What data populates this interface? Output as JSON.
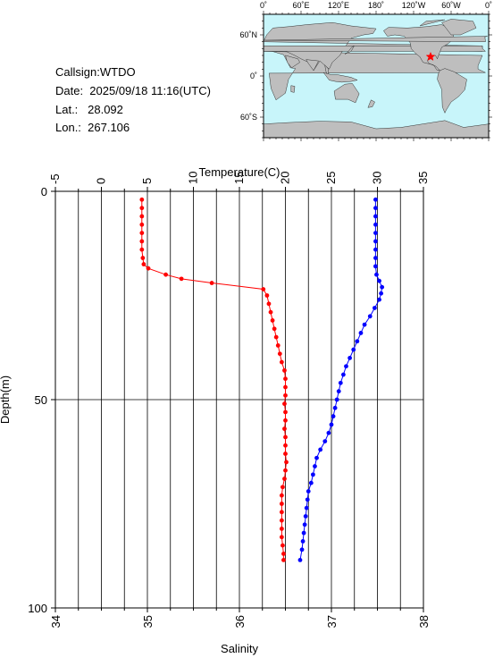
{
  "info": {
    "callsign": "Callsign:WTDO",
    "date": "Date:  2025/09/18 11:16(UTC)",
    "lat": "Lat.:   28.092",
    "lon": "Lon.:  267.106"
  },
  "map": {
    "lon_labels": [
      "0˚",
      "60˚E",
      "120˚E",
      "180˚",
      "120˚W",
      "60˚W",
      "0˚"
    ],
    "lat_labels": [
      "60˚N",
      "0˚",
      "60˚S"
    ],
    "ocean_color": "#c8f5fa",
    "land_color": "#bebebe",
    "marker_color": "#ff0000",
    "marker": {
      "lat": 28.092,
      "lon": 267.106
    }
  },
  "chart_data": {
    "type": "line",
    "temperature_axis": {
      "label": "Temperature(C)",
      "range": [
        -5,
        35
      ],
      "ticks": [
        "-5",
        "0",
        "5",
        "10",
        "15",
        "20",
        "25",
        "30",
        "35"
      ]
    },
    "salinity_axis": {
      "label": "Salinity",
      "range": [
        34,
        38
      ],
      "ticks": [
        "34",
        "35",
        "36",
        "37",
        "38"
      ]
    },
    "depth_axis": {
      "label": "Depth(m)",
      "range": [
        0,
        100
      ],
      "inverted": true,
      "ticks": [
        "0",
        "50",
        "100"
      ]
    },
    "grid": true,
    "series": [
      {
        "color": "#ff0000",
        "axis": "salinity",
        "points": [
          {
            "depth": 2,
            "value": 34.94
          },
          {
            "depth": 4,
            "value": 34.94
          },
          {
            "depth": 6,
            "value": 34.94
          },
          {
            "depth": 8,
            "value": 34.94
          },
          {
            "depth": 10,
            "value": 34.94
          },
          {
            "depth": 12,
            "value": 34.94
          },
          {
            "depth": 14,
            "value": 34.94
          },
          {
            "depth": 16,
            "value": 34.95
          },
          {
            "depth": 17.5,
            "value": 34.96
          },
          {
            "depth": 18.5,
            "value": 35.01
          },
          {
            "depth": 20,
            "value": 35.2
          },
          {
            "depth": 21,
            "value": 35.37
          },
          {
            "depth": 22,
            "value": 35.7
          },
          {
            "depth": 23.5,
            "value": 36.26
          },
          {
            "depth": 25,
            "value": 36.3
          },
          {
            "depth": 27,
            "value": 36.32
          },
          {
            "depth": 29,
            "value": 36.34
          },
          {
            "depth": 31,
            "value": 36.36
          },
          {
            "depth": 33,
            "value": 36.38
          },
          {
            "depth": 35,
            "value": 36.4
          },
          {
            "depth": 37,
            "value": 36.42
          },
          {
            "depth": 39,
            "value": 36.44
          },
          {
            "depth": 41,
            "value": 36.46
          },
          {
            "depth": 43,
            "value": 36.49
          },
          {
            "depth": 45,
            "value": 36.5
          },
          {
            "depth": 47,
            "value": 36.5
          },
          {
            "depth": 49,
            "value": 36.5
          },
          {
            "depth": 51,
            "value": 36.49
          },
          {
            "depth": 53,
            "value": 36.5
          },
          {
            "depth": 55,
            "value": 36.5
          },
          {
            "depth": 57,
            "value": 36.49
          },
          {
            "depth": 59,
            "value": 36.5
          },
          {
            "depth": 61,
            "value": 36.5
          },
          {
            "depth": 63,
            "value": 36.5
          },
          {
            "depth": 65,
            "value": 36.51
          },
          {
            "depth": 67,
            "value": 36.5
          },
          {
            "depth": 69,
            "value": 36.49
          },
          {
            "depth": 71,
            "value": 36.47
          },
          {
            "depth": 73,
            "value": 36.46
          },
          {
            "depth": 75,
            "value": 36.46
          },
          {
            "depth": 77,
            "value": 36.46
          },
          {
            "depth": 79,
            "value": 36.46
          },
          {
            "depth": 81,
            "value": 36.46
          },
          {
            "depth": 83,
            "value": 36.46
          },
          {
            "depth": 85,
            "value": 36.47
          },
          {
            "depth": 87,
            "value": 36.48
          },
          {
            "depth": 88.5,
            "value": 36.48
          }
        ]
      },
      {
        "color": "#0000ff",
        "axis": "temperature",
        "points": [
          {
            "depth": 2,
            "value": 29.8
          },
          {
            "depth": 4,
            "value": 29.8
          },
          {
            "depth": 6,
            "value": 29.8
          },
          {
            "depth": 8,
            "value": 29.8
          },
          {
            "depth": 10,
            "value": 29.8
          },
          {
            "depth": 12,
            "value": 29.8
          },
          {
            "depth": 14,
            "value": 29.8
          },
          {
            "depth": 16,
            "value": 29.8
          },
          {
            "depth": 18,
            "value": 29.8
          },
          {
            "depth": 20,
            "value": 29.9
          },
          {
            "depth": 21.5,
            "value": 30.2
          },
          {
            "depth": 23,
            "value": 30.5
          },
          {
            "depth": 24.5,
            "value": 30.4
          },
          {
            "depth": 26,
            "value": 30.2
          },
          {
            "depth": 28,
            "value": 29.7
          },
          {
            "depth": 30,
            "value": 29.2
          },
          {
            "depth": 32,
            "value": 28.6
          },
          {
            "depth": 34,
            "value": 28.2
          },
          {
            "depth": 36,
            "value": 27.8
          },
          {
            "depth": 38,
            "value": 27.4
          },
          {
            "depth": 40,
            "value": 27.0
          },
          {
            "depth": 42,
            "value": 26.6
          },
          {
            "depth": 44,
            "value": 26.3
          },
          {
            "depth": 46,
            "value": 26.0
          },
          {
            "depth": 48,
            "value": 25.8
          },
          {
            "depth": 50,
            "value": 25.6
          },
          {
            "depth": 52,
            "value": 25.4
          },
          {
            "depth": 54,
            "value": 25.2
          },
          {
            "depth": 56,
            "value": 25.0
          },
          {
            "depth": 58,
            "value": 24.7
          },
          {
            "depth": 60,
            "value": 24.3
          },
          {
            "depth": 62,
            "value": 23.8
          },
          {
            "depth": 64,
            "value": 23.4
          },
          {
            "depth": 66,
            "value": 23.2
          },
          {
            "depth": 68,
            "value": 23.0
          },
          {
            "depth": 70,
            "value": 22.8
          },
          {
            "depth": 72,
            "value": 22.5
          },
          {
            "depth": 74,
            "value": 22.4
          },
          {
            "depth": 76,
            "value": 22.3
          },
          {
            "depth": 78,
            "value": 22.2
          },
          {
            "depth": 80,
            "value": 22.1
          },
          {
            "depth": 82,
            "value": 22.0
          },
          {
            "depth": 84,
            "value": 21.9
          },
          {
            "depth": 86,
            "value": 21.8
          },
          {
            "depth": 88.5,
            "value": 21.6
          }
        ]
      }
    ]
  }
}
